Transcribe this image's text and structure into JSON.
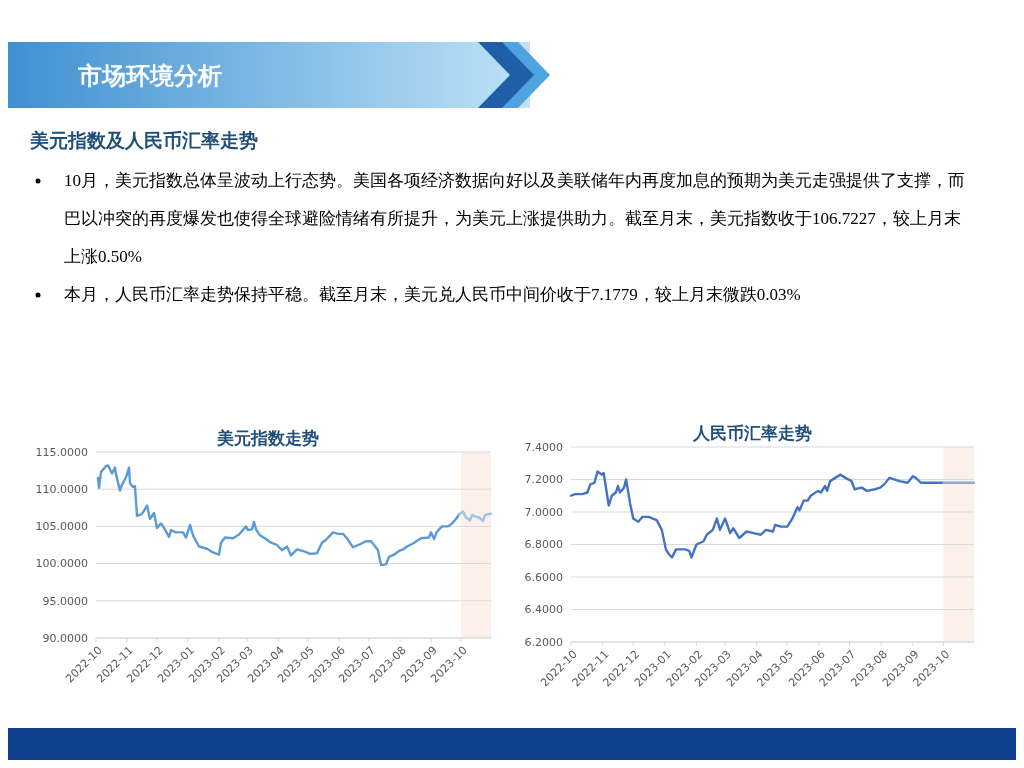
{
  "chart_data": [
    {
      "type": "line",
      "title": "美元指数走势",
      "grid": "y",
      "marker": "none",
      "line_style": "solid",
      "annotations": [
        "市场环境分析",
        "美元指数及人民币汇率走势",
        "10月，美元指数总体呈波动上行态势。美国各项经济数据向好以及美联储年内再度加息的预期为美元走强提供了支撑，而巴以冲突的再度爆发也使得全球避险情绪有所提升，为美元上涨提供助力。截至月末，美元指数收于106.7227，较上月末上涨0.50%",
        "本月，人民币汇率走势保持平稳。截至月末，美元兑人民币中间价收于7.1779，较上月末微跌0.03%"
      ],
      "xlim": [
        "2022-10-01",
        "2023-10-31"
      ],
      "xticks": [
        "2022-10",
        "2022-11",
        "2022-12",
        "2023-01",
        "2023-02",
        "2023-03",
        "2023-04",
        "2023-05",
        "2023-06",
        "2023-07",
        "2023-08",
        "2023-09",
        "2023-10"
      ],
      "ylim": [
        90,
        115
      ],
      "yticks": [
        {
          "value": 90,
          "label": "90.0000"
        },
        {
          "value": 95,
          "label": "95.0000"
        },
        {
          "value": 100,
          "label": "100.0000"
        },
        {
          "value": 105,
          "label": "105.0000"
        },
        {
          "value": 110,
          "label": "110.0000"
        },
        {
          "value": 115,
          "label": "115.0000"
        }
      ],
      "bands": [
        {
          "axis": "x",
          "from": "2023-10-01",
          "to": "2023-10-31",
          "color": "#fcf1ea"
        }
      ],
      "series": [
        {
          "color": "#5b9bd5",
          "x": [
            "2022-10-03",
            "2022-10-04",
            "2022-10-06",
            "2022-10-11",
            "2022-10-13",
            "2022-10-17",
            "2022-10-20",
            "2022-10-21",
            "2022-10-25",
            "2022-10-27",
            "2022-10-31",
            "2022-11-03",
            "2022-11-04",
            "2022-11-07",
            "2022-11-09",
            "2022-11-11",
            "2022-11-15",
            "2022-11-17",
            "2022-11-21",
            "2022-11-24",
            "2022-11-28",
            "2022-12-01",
            "2022-12-05",
            "2022-12-08",
            "2022-12-13",
            "2022-12-15",
            "2022-12-20",
            "2022-12-27",
            "2022-12-30",
            "2023-01-03",
            "2023-01-06",
            "2023-01-12",
            "2023-01-20",
            "2023-01-26",
            "2023-02-01",
            "2023-02-03",
            "2023-02-07",
            "2023-02-15",
            "2023-02-21",
            "2023-02-28",
            "2023-03-02",
            "2023-03-06",
            "2023-03-08",
            "2023-03-10",
            "2023-03-14",
            "2023-03-20",
            "2023-03-24",
            "2023-03-31",
            "2023-04-05",
            "2023-04-10",
            "2023-04-14",
            "2023-04-20",
            "2023-04-28",
            "2023-05-03",
            "2023-05-10",
            "2023-05-15",
            "2023-05-19",
            "2023-05-26",
            "2023-05-31",
            "2023-06-05",
            "2023-06-09",
            "2023-06-15",
            "2023-06-22",
            "2023-06-28",
            "2023-07-03",
            "2023-07-06",
            "2023-07-10",
            "2023-07-13",
            "2023-07-18",
            "2023-07-21",
            "2023-07-26",
            "2023-07-31",
            "2023-08-04",
            "2023-08-08",
            "2023-08-14",
            "2023-08-22",
            "2023-08-30",
            "2023-09-01",
            "2023-09-04",
            "2023-09-07",
            "2023-09-12",
            "2023-09-18",
            "2023-09-22",
            "2023-09-26",
            "2023-09-29"
          ],
          "values": [
            111.5,
            110.2,
            112.3,
            113.1,
            113.2,
            112.1,
            112.9,
            112.0,
            109.8,
            110.6,
            111.6,
            112.9,
            110.8,
            110.3,
            110.4,
            106.4,
            106.6,
            106.9,
            107.8,
            106.0,
            106.8,
            104.8,
            105.4,
            104.8,
            103.6,
            104.5,
            104.2,
            104.2,
            103.5,
            105.2,
            103.8,
            102.3,
            102.0,
            101.5,
            101.2,
            102.8,
            103.5,
            103.4,
            103.9,
            105.0,
            104.5,
            104.6,
            105.6,
            104.6,
            103.8,
            103.3,
            102.9,
            102.5,
            101.8,
            102.3,
            101.1,
            101.9,
            101.6,
            101.3,
            101.4,
            102.8,
            103.2,
            104.2,
            104.0,
            104.0,
            103.4,
            102.2,
            102.6,
            103.0,
            103.0,
            102.5,
            101.8,
            99.8,
            99.9,
            100.9,
            101.2,
            101.7,
            101.9,
            102.3,
            102.7,
            103.4,
            103.5,
            104.2,
            103.3,
            104.3,
            105.0,
            105.0,
            105.4,
            106.0,
            106.6
          ]
        },
        {
          "color": "#9dc3e6",
          "x": [
            "2023-09-29",
            "2023-10-03",
            "2023-10-06",
            "2023-10-10",
            "2023-10-12",
            "2023-10-16",
            "2023-10-19",
            "2023-10-23",
            "2023-10-25",
            "2023-10-27",
            "2023-10-31"
          ],
          "values": [
            106.6,
            107.0,
            106.2,
            105.8,
            106.5,
            106.3,
            106.2,
            105.7,
            106.5,
            106.6,
            106.7
          ]
        }
      ]
    },
    {
      "type": "line",
      "title": "人民币汇率走势",
      "grid": "y",
      "marker": "none",
      "line_style": "solid",
      "xlim": [
        "2022-10-01",
        "2023-10-31"
      ],
      "xticks": [
        "2022-10",
        "2022-11",
        "2022-12",
        "2023-01",
        "2023-02",
        "2023-03",
        "2023-04",
        "2023-05",
        "2023-06",
        "2023-07",
        "2023-08",
        "2023-09",
        "2023-10"
      ],
      "ylim": [
        6.2,
        7.4
      ],
      "yticks": [
        {
          "value": 6.2,
          "label": "6.2000"
        },
        {
          "value": 6.4,
          "label": "6.4000"
        },
        {
          "value": 6.6,
          "label": "6.6000"
        },
        {
          "value": 6.8,
          "label": "6.8000"
        },
        {
          "value": 7.0,
          "label": "7.0000"
        },
        {
          "value": 7.2,
          "label": "7.2000"
        },
        {
          "value": 7.4,
          "label": "7.4000"
        }
      ],
      "bands": [
        {
          "axis": "x",
          "from": "2023-10-01",
          "to": "2023-10-31",
          "color": "#fcf1ea"
        }
      ],
      "series": [
        {
          "color": "#4472c4",
          "x": [
            "2022-10-01",
            "2022-10-05",
            "2022-10-12",
            "2022-10-17",
            "2022-10-20",
            "2022-10-24",
            "2022-10-27",
            "2022-10-31",
            "2022-11-02",
            "2022-11-07",
            "2022-11-10",
            "2022-11-14",
            "2022-11-16",
            "2022-11-18",
            "2022-11-22",
            "2022-11-24",
            "2022-11-28",
            "2022-12-01",
            "2022-12-06",
            "2022-12-10",
            "2022-12-16",
            "2022-12-24",
            "2022-12-29",
            "2023-01-02",
            "2023-01-05",
            "2023-01-08",
            "2023-01-12",
            "2023-01-21",
            "2023-01-25",
            "2023-01-27",
            "2023-02-01",
            "2023-02-08",
            "2023-02-11",
            "2023-02-17",
            "2023-02-21",
            "2023-02-24",
            "2023-03-01",
            "2023-03-06",
            "2023-03-09",
            "2023-03-15",
            "2023-03-22",
            "2023-03-29",
            "2023-04-05",
            "2023-04-10",
            "2023-04-17",
            "2023-04-19",
            "2023-04-25",
            "2023-05-01",
            "2023-05-06",
            "2023-05-11",
            "2023-05-13",
            "2023-05-17",
            "2023-05-21",
            "2023-05-24",
            "2023-05-31",
            "2023-06-03",
            "2023-06-07",
            "2023-06-09",
            "2023-06-12",
            "2023-06-22",
            "2023-06-27",
            "2023-07-03",
            "2023-07-06",
            "2023-07-13",
            "2023-07-18",
            "2023-07-26",
            "2023-07-31",
            "2023-08-04",
            "2023-08-09",
            "2023-08-19",
            "2023-08-27",
            "2023-09-01",
            "2023-09-04",
            "2023-09-09",
            "2023-09-20",
            "2023-09-25",
            "2023-10-01"
          ],
          "values": [
            7.1,
            7.11,
            7.11,
            7.12,
            7.17,
            7.18,
            7.25,
            7.23,
            7.24,
            7.04,
            7.1,
            7.12,
            7.16,
            7.12,
            7.15,
            7.2,
            7.05,
            6.96,
            6.94,
            6.97,
            6.97,
            6.95,
            6.89,
            6.77,
            6.74,
            6.72,
            6.77,
            6.77,
            6.76,
            6.72,
            6.8,
            6.82,
            6.86,
            6.89,
            6.96,
            6.89,
            6.96,
            6.87,
            6.9,
            6.84,
            6.88,
            6.87,
            6.86,
            6.89,
            6.88,
            6.92,
            6.91,
            6.91,
            6.96,
            7.03,
            7.01,
            7.07,
            7.07,
            7.1,
            7.13,
            7.12,
            7.16,
            7.13,
            7.19,
            7.23,
            7.21,
            7.19,
            7.14,
            7.15,
            7.13,
            7.14,
            7.15,
            7.17,
            7.21,
            7.19,
            7.18,
            7.22,
            7.21,
            7.18,
            7.18,
            7.18,
            7.18
          ]
        },
        {
          "color": "#8faadc",
          "x": [
            "2023-10-01",
            "2023-10-10",
            "2023-10-20",
            "2023-10-31"
          ],
          "values": [
            7.18,
            7.18,
            7.18,
            7.18
          ]
        }
      ]
    }
  ]
}
